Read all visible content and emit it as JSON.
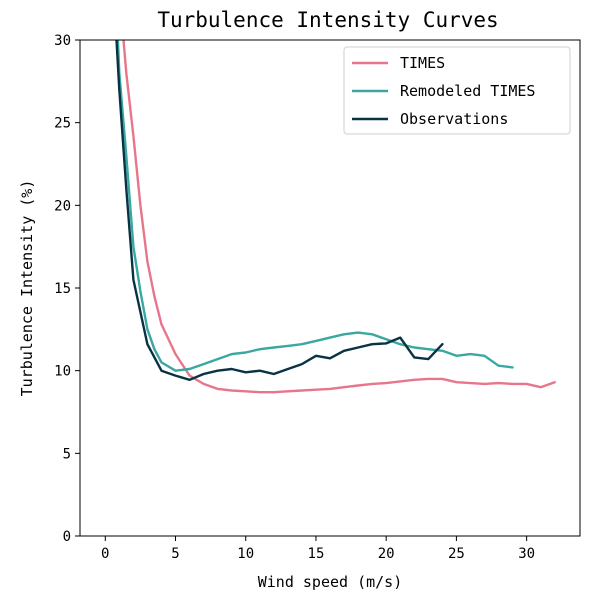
{
  "chart_data": {
    "type": "line",
    "title": "Turbulence Intensity Curves",
    "xlabel": "Wind speed (m/s)",
    "ylabel": "Turbulence Intensity (%)",
    "xlim": [
      -1.8,
      33.8
    ],
    "ylim": [
      0,
      30
    ],
    "xticks": [
      0,
      5,
      10,
      15,
      20,
      25,
      30
    ],
    "yticks": [
      0,
      5,
      10,
      15,
      20,
      25,
      30
    ],
    "grid": false,
    "legend_position": "top-right",
    "series": [
      {
        "name": "TIMES",
        "color": "#e8768a",
        "x": [
          1.3,
          1.5,
          2,
          2.5,
          3,
          3.5,
          4,
          5,
          6,
          7,
          8,
          9,
          10,
          11,
          12,
          13,
          14,
          15,
          16,
          17,
          18,
          19,
          20,
          21,
          22,
          23,
          24,
          25,
          26,
          27,
          28,
          29,
          30,
          31,
          32
        ],
        "y": [
          30,
          28,
          24.2,
          20,
          16.6,
          14.5,
          12.8,
          11,
          9.7,
          9.2,
          8.9,
          8.8,
          8.75,
          8.7,
          8.7,
          8.75,
          8.8,
          8.85,
          8.9,
          9.0,
          9.1,
          9.2,
          9.25,
          9.35,
          9.45,
          9.5,
          9.5,
          9.3,
          9.25,
          9.2,
          9.25,
          9.2,
          9.2,
          9.0,
          9.3
        ]
      },
      {
        "name": "Remodeled TIMES",
        "color": "#3aa8a0",
        "x": [
          0.9,
          1,
          1.5,
          2,
          2.5,
          3,
          3.5,
          4,
          5,
          6,
          7,
          8,
          9,
          10,
          11,
          12,
          13,
          14,
          15,
          16,
          17,
          18,
          19,
          20,
          21,
          22,
          23,
          24,
          25,
          26,
          27,
          28,
          29
        ],
        "y": [
          30,
          28,
          23,
          17.5,
          14.8,
          12.5,
          11.3,
          10.5,
          10.0,
          10.1,
          10.4,
          10.7,
          11.0,
          11.1,
          11.3,
          11.4,
          11.5,
          11.6,
          11.8,
          12.0,
          12.2,
          12.3,
          12.2,
          11.9,
          11.6,
          11.4,
          11.3,
          11.2,
          10.9,
          11.0,
          10.9,
          10.3,
          10.2
        ]
      },
      {
        "name": "Observations",
        "color": "#083344",
        "x": [
          0.8,
          1,
          1.5,
          2,
          3,
          4,
          5,
          6,
          7,
          8,
          9,
          10,
          11,
          12,
          13,
          14,
          15,
          16,
          17,
          18,
          19,
          20,
          21,
          22,
          23,
          24
        ],
        "y": [
          30,
          27,
          21,
          15.5,
          11.6,
          10.0,
          9.7,
          9.45,
          9.8,
          10.0,
          10.1,
          9.9,
          10.0,
          9.8,
          10.1,
          10.4,
          10.9,
          10.75,
          11.2,
          11.4,
          11.6,
          11.65,
          12.0,
          10.8,
          10.7,
          11.6
        ]
      }
    ]
  }
}
